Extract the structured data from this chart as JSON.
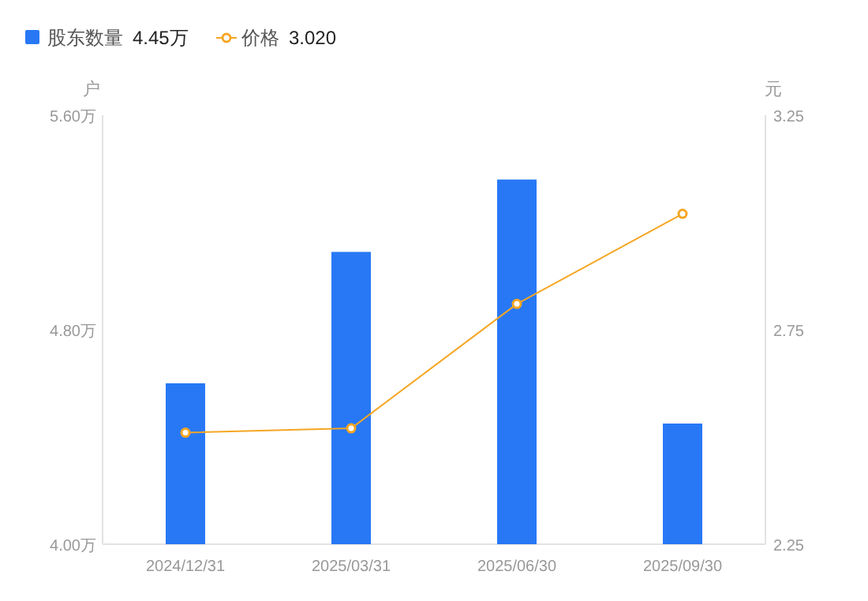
{
  "chart_data": {
    "type": "bar",
    "categories": [
      "2024/12/31",
      "2025/03/31",
      "2025/06/30",
      "2025/09/30"
    ],
    "series": [
      {
        "name": "股东数量",
        "color": "#2878f5",
        "values": [
          4.6,
          5.09,
          5.36,
          4.45
        ]
      },
      {
        "name": "价格",
        "type": "line",
        "axis": "y2",
        "color": "#f5a623",
        "values": [
          2.51,
          2.52,
          2.81,
          3.02
        ]
      }
    ],
    "annotations": [
      "4.45万",
      "3.020"
    ],
    "ylabel": "户",
    "y2label": "元",
    "ylim": [
      4.0,
      5.6
    ],
    "yticks": [
      {
        "value": 4.0,
        "label": "4.00万"
      },
      {
        "value": 4.8,
        "label": "4.80万"
      },
      {
        "value": 5.6,
        "label": "5.60万"
      }
    ],
    "y2lim": [
      2.25,
      3.25
    ],
    "y2ticks": [
      2.25,
      2.75,
      3.25
    ],
    "legend": "top left",
    "marker": "circle",
    "line_style": "solid",
    "grid": false
  }
}
